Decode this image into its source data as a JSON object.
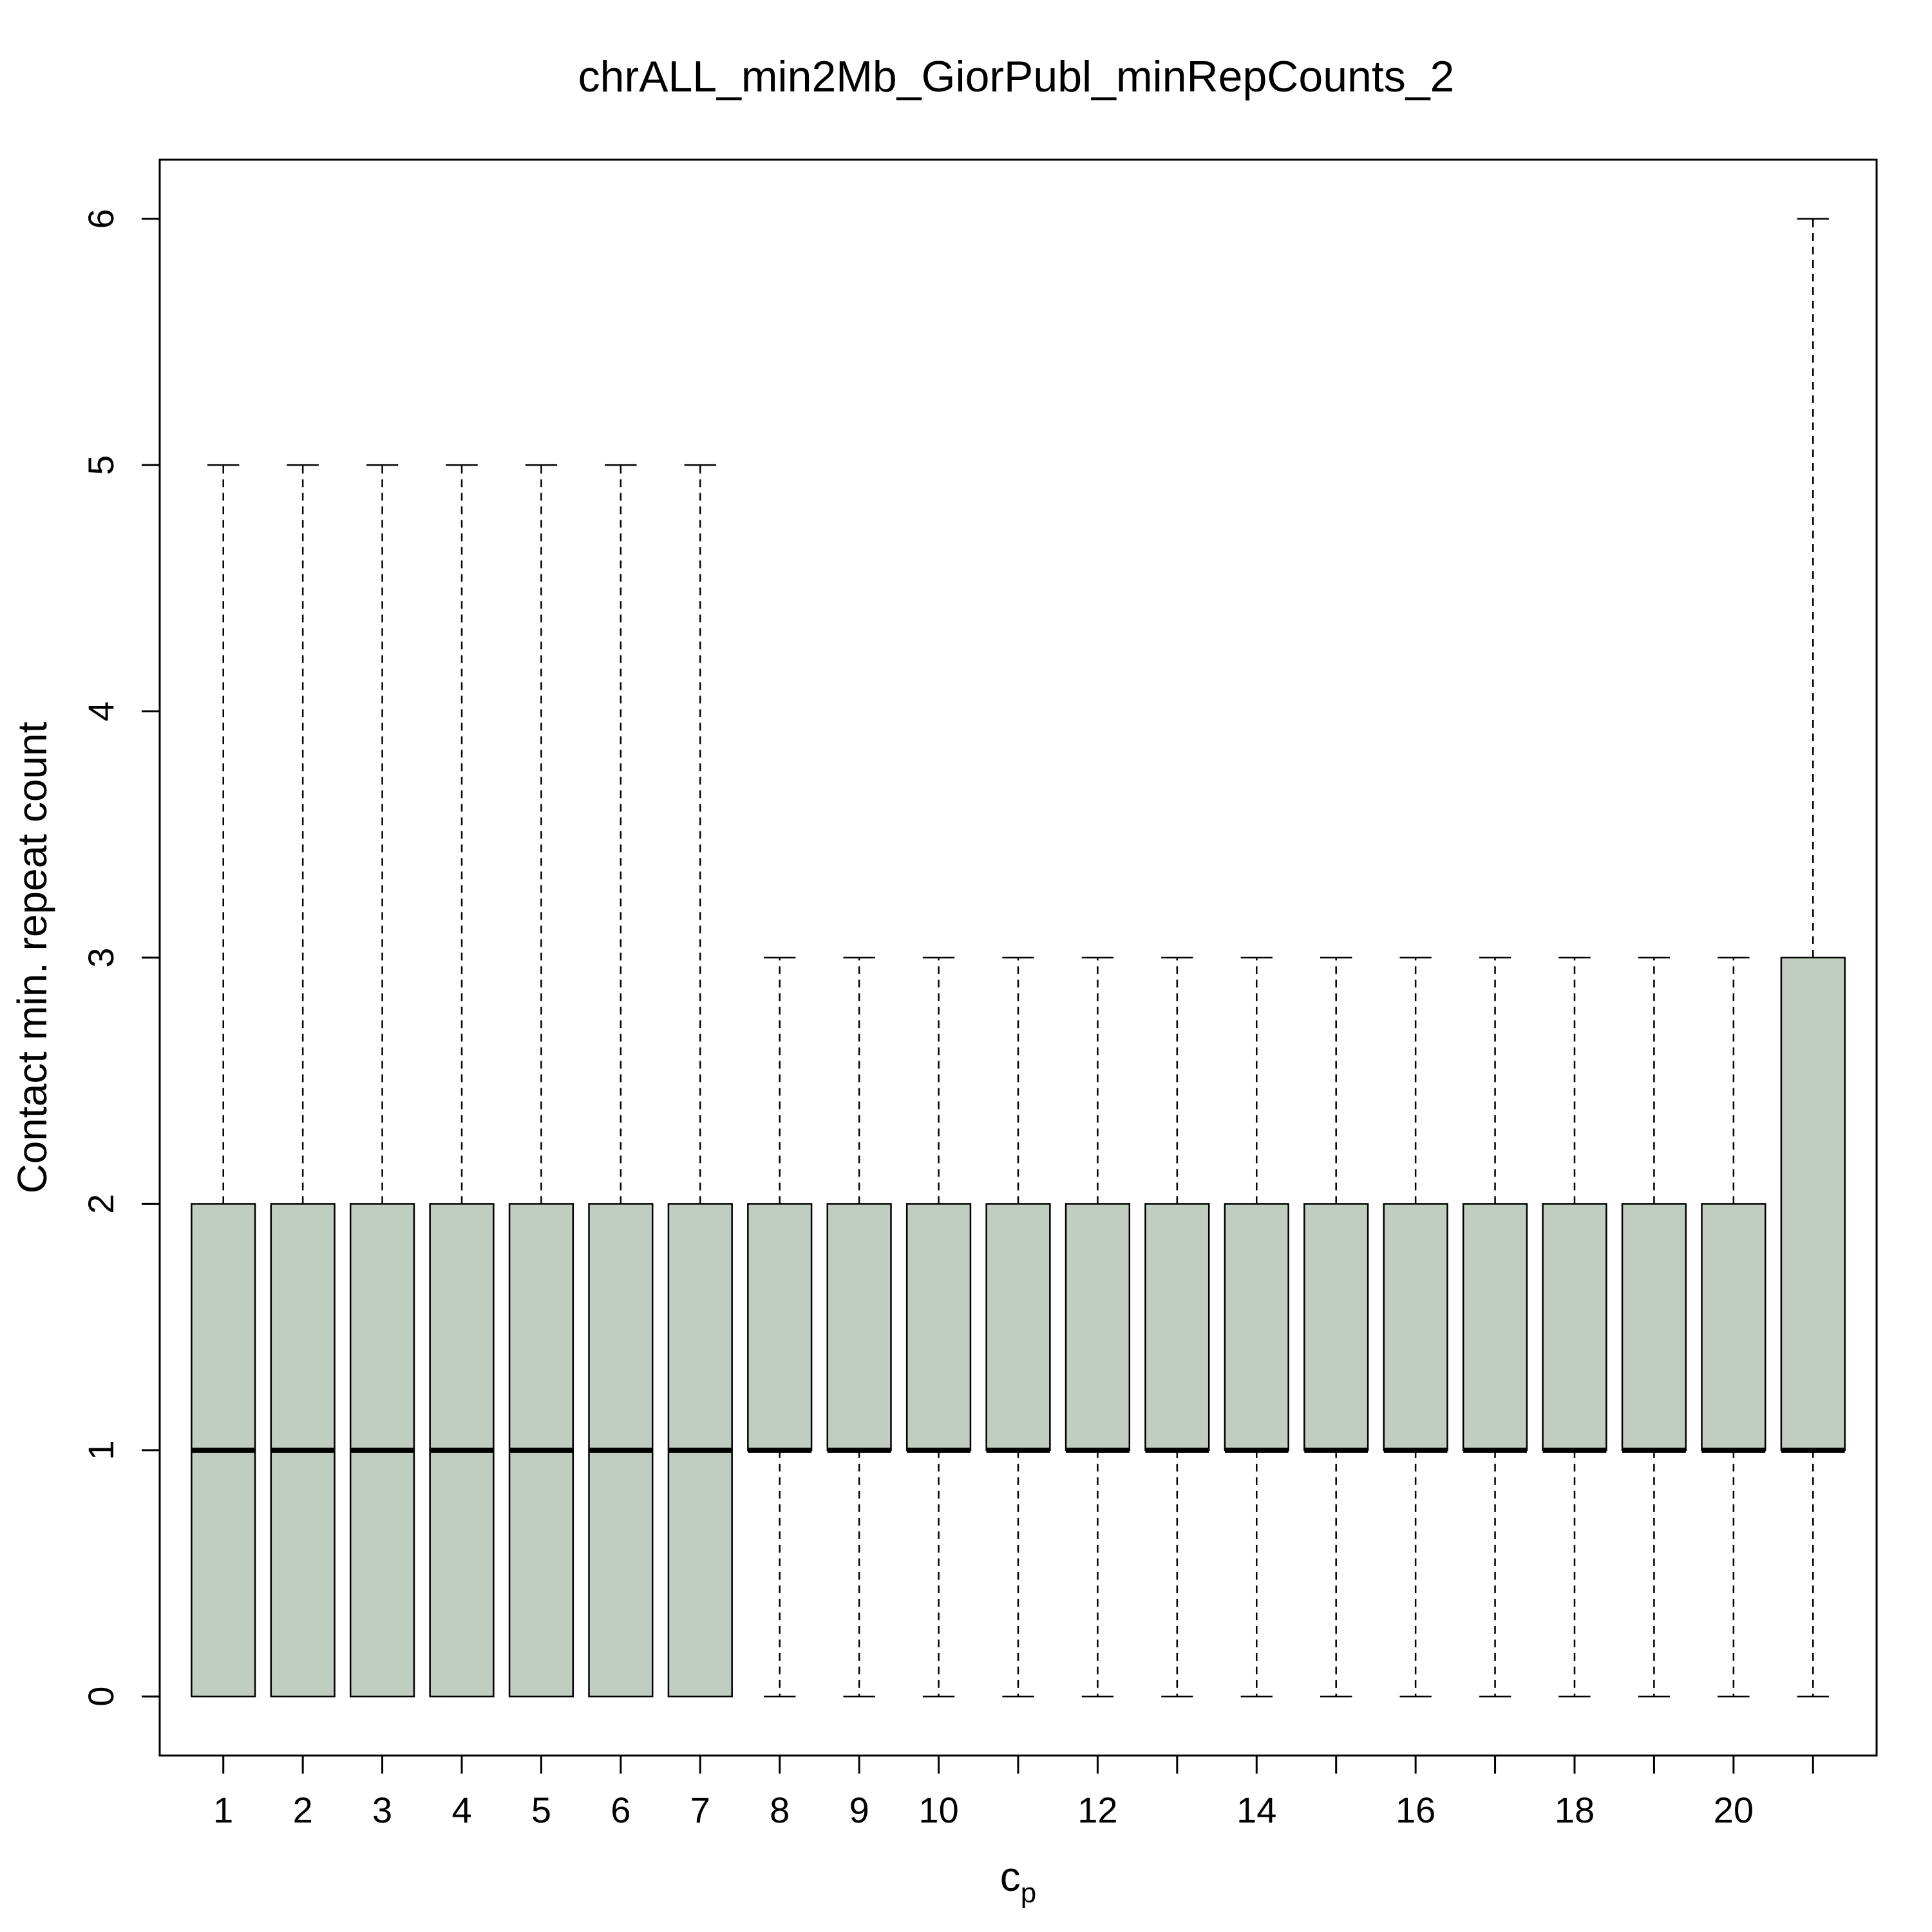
{
  "chart_data": {
    "type": "boxplot",
    "title": "chrALL_min2Mb_GiorPubl_minRepCounts_2",
    "xlabel_main": "c",
    "xlabel_sub": "p",
    "ylabel": "Contact min. repeat count",
    "ylim": [
      -0.24,
      6.24
    ],
    "yticks": [
      "0",
      "1",
      "2",
      "3",
      "4",
      "5",
      "6"
    ],
    "x_tick_labels": [
      "1",
      "2",
      "3",
      "4",
      "5",
      "6",
      "7",
      "8",
      "9",
      "10",
      "",
      "12",
      "",
      "14",
      "",
      "16",
      "",
      "18",
      "",
      "20",
      ""
    ],
    "box_color": "#c2cdc1",
    "grid": false,
    "legend": "none",
    "boxes": [
      {
        "category": "1",
        "whisker_low": 0,
        "q1": 0,
        "median": 1,
        "q3": 2,
        "whisker_high": 5
      },
      {
        "category": "2",
        "whisker_low": 0,
        "q1": 0,
        "median": 1,
        "q3": 2,
        "whisker_high": 5
      },
      {
        "category": "3",
        "whisker_low": 0,
        "q1": 0,
        "median": 1,
        "q3": 2,
        "whisker_high": 5
      },
      {
        "category": "4",
        "whisker_low": 0,
        "q1": 0,
        "median": 1,
        "q3": 2,
        "whisker_high": 5
      },
      {
        "category": "5",
        "whisker_low": 0,
        "q1": 0,
        "median": 1,
        "q3": 2,
        "whisker_high": 5
      },
      {
        "category": "6",
        "whisker_low": 0,
        "q1": 0,
        "median": 1,
        "q3": 2,
        "whisker_high": 5
      },
      {
        "category": "7",
        "whisker_low": 0,
        "q1": 0,
        "median": 1,
        "q3": 2,
        "whisker_high": 5
      },
      {
        "category": "8",
        "whisker_low": 0,
        "q1": 1,
        "median": 1,
        "q3": 2,
        "whisker_high": 3
      },
      {
        "category": "9",
        "whisker_low": 0,
        "q1": 1,
        "median": 1,
        "q3": 2,
        "whisker_high": 3
      },
      {
        "category": "10",
        "whisker_low": 0,
        "q1": 1,
        "median": 1,
        "q3": 2,
        "whisker_high": 3
      },
      {
        "category": "11",
        "whisker_low": 0,
        "q1": 1,
        "median": 1,
        "q3": 2,
        "whisker_high": 3
      },
      {
        "category": "12",
        "whisker_low": 0,
        "q1": 1,
        "median": 1,
        "q3": 2,
        "whisker_high": 3
      },
      {
        "category": "13",
        "whisker_low": 0,
        "q1": 1,
        "median": 1,
        "q3": 2,
        "whisker_high": 3
      },
      {
        "category": "14",
        "whisker_low": 0,
        "q1": 1,
        "median": 1,
        "q3": 2,
        "whisker_high": 3
      },
      {
        "category": "15",
        "whisker_low": 0,
        "q1": 1,
        "median": 1,
        "q3": 2,
        "whisker_high": 3
      },
      {
        "category": "16",
        "whisker_low": 0,
        "q1": 1,
        "median": 1,
        "q3": 2,
        "whisker_high": 3
      },
      {
        "category": "17",
        "whisker_low": 0,
        "q1": 1,
        "median": 1,
        "q3": 2,
        "whisker_high": 3
      },
      {
        "category": "18",
        "whisker_low": 0,
        "q1": 1,
        "median": 1,
        "q3": 2,
        "whisker_high": 3
      },
      {
        "category": "19",
        "whisker_low": 0,
        "q1": 1,
        "median": 1,
        "q3": 2,
        "whisker_high": 3
      },
      {
        "category": "20",
        "whisker_low": 0,
        "q1": 1,
        "median": 1,
        "q3": 2,
        "whisker_high": 3
      },
      {
        "category": "21",
        "whisker_low": 0,
        "q1": 1,
        "median": 1,
        "q3": 3,
        "whisker_high": 6
      }
    ]
  }
}
